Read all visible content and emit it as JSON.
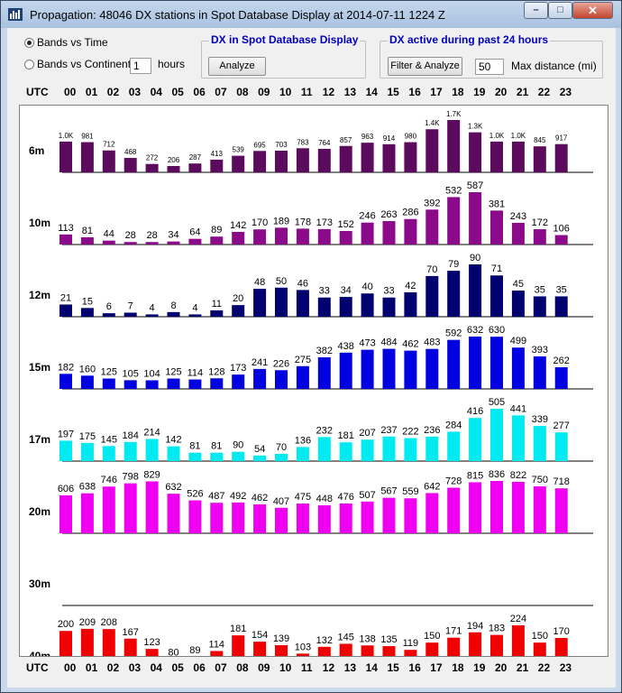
{
  "window": {
    "title": "Propagation: 48046 DX stations in Spot Database Display at 2014-07-11 1224 Z",
    "minimize_glyph": "–",
    "maximize_glyph": "□",
    "close_glyph": "✕"
  },
  "options": {
    "bands_vs_time": "Bands vs Time",
    "bands_vs_continents": "Bands vs Continents",
    "bands_vs_time_selected": true,
    "hours_value": "1",
    "hours_label": "hours"
  },
  "spot_group": {
    "title": "DX in Spot Database Display",
    "analyze_label": "Analyze"
  },
  "active_group": {
    "title": "DX active during past 24 hours",
    "filter_label": "Filter & Analyze",
    "distance_value": "50",
    "distance_label": "Max distance (mi)"
  },
  "utc_label": "UTC",
  "hours": [
    "00",
    "01",
    "02",
    "03",
    "04",
    "05",
    "06",
    "07",
    "08",
    "09",
    "10",
    "11",
    "12",
    "13",
    "14",
    "15",
    "16",
    "17",
    "18",
    "19",
    "20",
    "21",
    "22",
    "23"
  ],
  "colors": {
    "6m": "#5c0a5c",
    "10m": "#8a0a8a",
    "12m": "#00006e",
    "15m": "#0000e0",
    "17m": "#00eaf0",
    "20m": "#f000f0",
    "40m": "#f00000",
    "titlebar": "#b8cde6"
  },
  "chart_data": {
    "type": "bar",
    "x": [
      "00",
      "01",
      "02",
      "03",
      "04",
      "05",
      "06",
      "07",
      "08",
      "09",
      "10",
      "11",
      "12",
      "13",
      "14",
      "15",
      "16",
      "17",
      "18",
      "19",
      "20",
      "21",
      "22",
      "23"
    ],
    "xlabel": "UTC",
    "bands": [
      {
        "name": "6m",
        "values": [
          1000,
          981,
          712,
          468,
          272,
          206,
          287,
          413,
          539,
          695,
          703,
          783,
          764,
          857,
          963,
          914,
          980,
          1400,
          1700,
          1300,
          1000,
          1000,
          845,
          917
        ],
        "labels": [
          "1.0K",
          "981",
          "712",
          "468",
          "272",
          "206",
          "287",
          "413",
          "539",
          "695",
          "703",
          "783",
          "764",
          "857",
          "963",
          "914",
          "980",
          "1.4K",
          "1.7K",
          "1.3K",
          "1.0K",
          "1.0K",
          "845",
          "917"
        ]
      },
      {
        "name": "10m",
        "values": [
          113,
          81,
          44,
          28,
          28,
          34,
          64,
          89,
          142,
          170,
          189,
          178,
          173,
          152,
          246,
          263,
          286,
          392,
          532,
          587,
          381,
          243,
          172,
          106
        ],
        "labels": [
          "113",
          "81",
          "44",
          "28",
          "28",
          "34",
          "64",
          "89",
          "142",
          "170",
          "189",
          "178",
          "173",
          "152",
          "246",
          "263",
          "286",
          "392",
          "532",
          "587",
          "381",
          "243",
          "172",
          "106"
        ]
      },
      {
        "name": "12m",
        "values": [
          21,
          15,
          6,
          7,
          4,
          8,
          4,
          11,
          20,
          48,
          50,
          46,
          33,
          34,
          40,
          33,
          42,
          70,
          79,
          90,
          71,
          45,
          35,
          35
        ],
        "labels": [
          "21",
          "15",
          "6",
          "7",
          "4",
          "8",
          "4",
          "11",
          "20",
          "48",
          "50",
          "46",
          "33",
          "34",
          "40",
          "33",
          "42",
          "70",
          "79",
          "90",
          "71",
          "45",
          "35",
          "35"
        ]
      },
      {
        "name": "15m",
        "values": [
          182,
          160,
          125,
          105,
          104,
          125,
          114,
          128,
          173,
          241,
          226,
          275,
          382,
          438,
          473,
          484,
          462,
          483,
          592,
          632,
          630,
          499,
          393,
          262
        ],
        "labels": [
          "182",
          "160",
          "125",
          "105",
          "104",
          "125",
          "114",
          "128",
          "173",
          "241",
          "226",
          "275",
          "382",
          "438",
          "473",
          "484",
          "462",
          "483",
          "592",
          "632",
          "630",
          "499",
          "393",
          "262"
        ]
      },
      {
        "name": "17m",
        "values": [
          197,
          175,
          145,
          184,
          214,
          142,
          81,
          81,
          90,
          54,
          70,
          136,
          232,
          181,
          207,
          237,
          222,
          236,
          284,
          416,
          505,
          441,
          339,
          277
        ],
        "labels": [
          "197",
          "175",
          "145",
          "184",
          "214",
          "142",
          "81",
          "81",
          "90",
          "54",
          "70",
          "136",
          "232",
          "181",
          "207",
          "237",
          "222",
          "236",
          "284",
          "416",
          "505",
          "441",
          "339",
          "277"
        ]
      },
      {
        "name": "20m",
        "values": [
          606,
          638,
          746,
          798,
          829,
          632,
          526,
          487,
          492,
          462,
          407,
          475,
          448,
          476,
          507,
          567,
          559,
          642,
          728,
          815,
          836,
          822,
          750,
          718
        ],
        "labels": [
          "606",
          "638",
          "746",
          "798",
          "829",
          "632",
          "526",
          "487",
          "492",
          "462",
          "407",
          "475",
          "448",
          "476",
          "507",
          "567",
          "559",
          "642",
          "728",
          "815",
          "836",
          "822",
          "750",
          "718"
        ]
      },
      {
        "name": "30m",
        "values": [],
        "labels": []
      },
      {
        "name": "40m",
        "values": [
          200,
          209,
          208,
          167,
          123,
          80,
          89,
          114,
          181,
          154,
          139,
          103,
          132,
          145,
          138,
          135,
          119,
          150,
          171,
          194,
          183,
          224,
          150,
          170
        ],
        "labels": [
          "200",
          "209",
          "208",
          "167",
          "123",
          "80",
          "89",
          "114",
          "181",
          "154",
          "139",
          "103",
          "132",
          "145",
          "138",
          "135",
          "119",
          "150",
          "171",
          "194",
          "183",
          "224",
          "150",
          "170"
        ]
      }
    ]
  }
}
